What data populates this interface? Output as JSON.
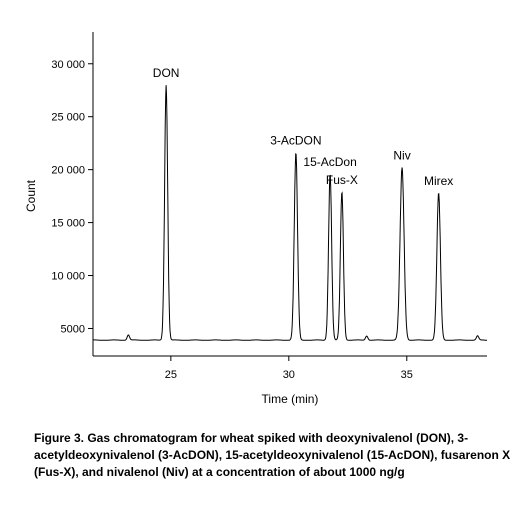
{
  "chart_data": {
    "type": "line",
    "title": "",
    "xlabel": "Time (min)",
    "ylabel": "Count",
    "xlim": [
      21.7,
      38.4
    ],
    "ylim": [
      2400,
      33000
    ],
    "x_ticks": [
      25,
      30,
      35
    ],
    "y_ticks": [
      5000,
      10000,
      15000,
      20000,
      25000,
      30000
    ],
    "y_tick_labels": [
      "5000",
      "10 000",
      "15 000",
      "20 000",
      "25 000",
      "30 000"
    ],
    "grid": false,
    "baseline": 3900,
    "peaks": [
      {
        "label": "",
        "x": 23.2,
        "y": 4400
      },
      {
        "label": "DON",
        "x": 24.8,
        "y": 28000
      },
      {
        "label": "3-AcDON",
        "x": 30.3,
        "y": 21600
      },
      {
        "label": "15-AcDon",
        "x": 31.75,
        "y": 19600
      },
      {
        "label": "Fus-X",
        "x": 32.25,
        "y": 17900
      },
      {
        "label": "",
        "x": 33.3,
        "y": 4300
      },
      {
        "label": "Niv",
        "x": 34.8,
        "y": 20200
      },
      {
        "label": "Mirex",
        "x": 36.35,
        "y": 17800
      },
      {
        "label": "",
        "x": 38.0,
        "y": 4300
      }
    ]
  },
  "caption": "Figure 3. Gas chromatogram for wheat spiked with deoxynivalenol (DON), 3-acetyldeoxynivalenol (3-AcDON), 15-acetyldeoxynivalenol (15-AcDON), fusarenon X (Fus-X), and nivalenol (Niv) at a concentration of about 1000 ng/g"
}
